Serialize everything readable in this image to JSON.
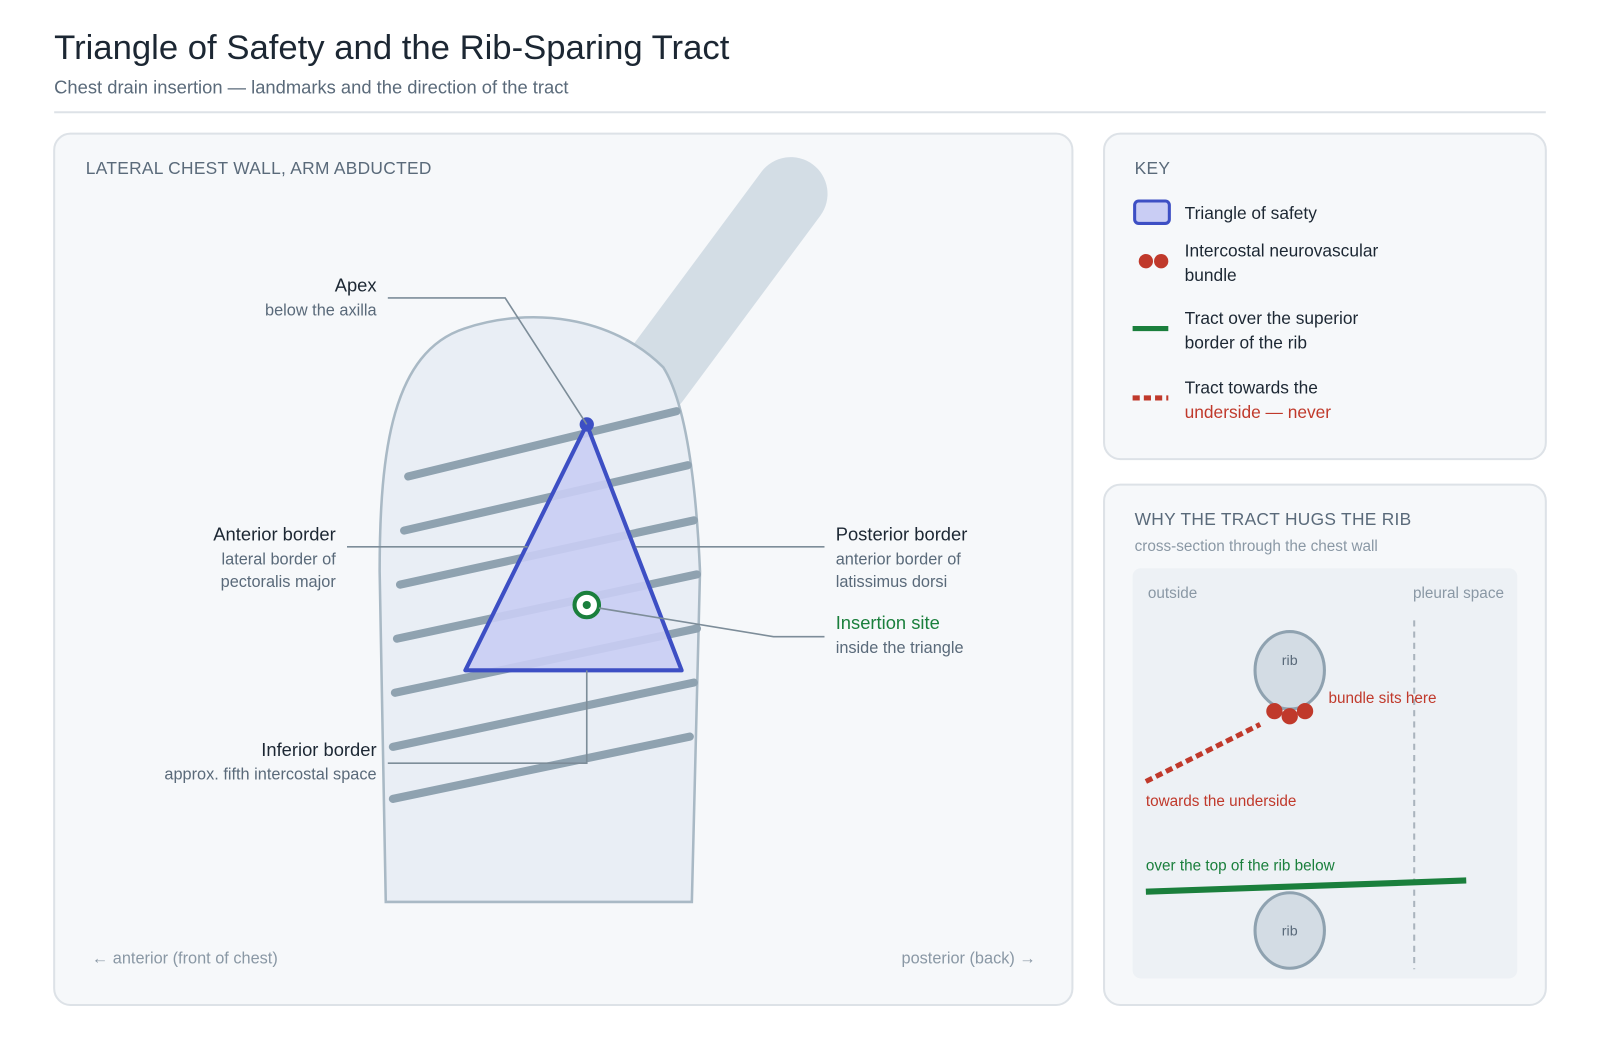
{
  "header": {
    "title": "Triangle of Safety and the Rib-Sparing Tract",
    "subtitle": "Chest drain insertion — landmarks and the direction of the tract"
  },
  "main_panel": {
    "heading": "LATERAL CHEST WALL, ARM ABDUCTED",
    "apex": {
      "title": "Apex",
      "note": [
        "below the axilla"
      ]
    },
    "anterior_border": {
      "title": "Anterior border",
      "note": [
        "lateral border of",
        "pectoralis major"
      ]
    },
    "posterior_border": {
      "title": "Posterior border",
      "note": [
        "anterior border of",
        "latissimus dorsi"
      ]
    },
    "insertion_site": {
      "title": "Insertion site",
      "note": [
        "inside the triangle"
      ]
    },
    "inferior_border": {
      "title": "Inferior border",
      "note": [
        "approx. fifth intercostal space"
      ]
    },
    "direction_left": "← anterior (front of chest)",
    "direction_right": "posterior (back) →"
  },
  "key": {
    "heading": "KEY",
    "items": [
      {
        "lines": [
          "Triangle of safety"
        ]
      },
      {
        "lines": [
          "Intercostal neurovascular",
          "bundle"
        ]
      },
      {
        "lines": [
          "Tract over the superior",
          "border of the rib"
        ]
      },
      {
        "lines": [
          "Tract towards the",
          "underside — never"
        ]
      }
    ]
  },
  "cross_section": {
    "heading": "WHY THE TRACT HUGS THE RIB",
    "subtitle": "cross-section through the chest wall",
    "outside": "outside",
    "pleural_space": "pleural space",
    "upper_rib": "rib",
    "lower_rib": "rib",
    "bundle_label": "bundle sits here",
    "underside_label": "towards the underside",
    "over_label": "over the top of the rib below"
  }
}
